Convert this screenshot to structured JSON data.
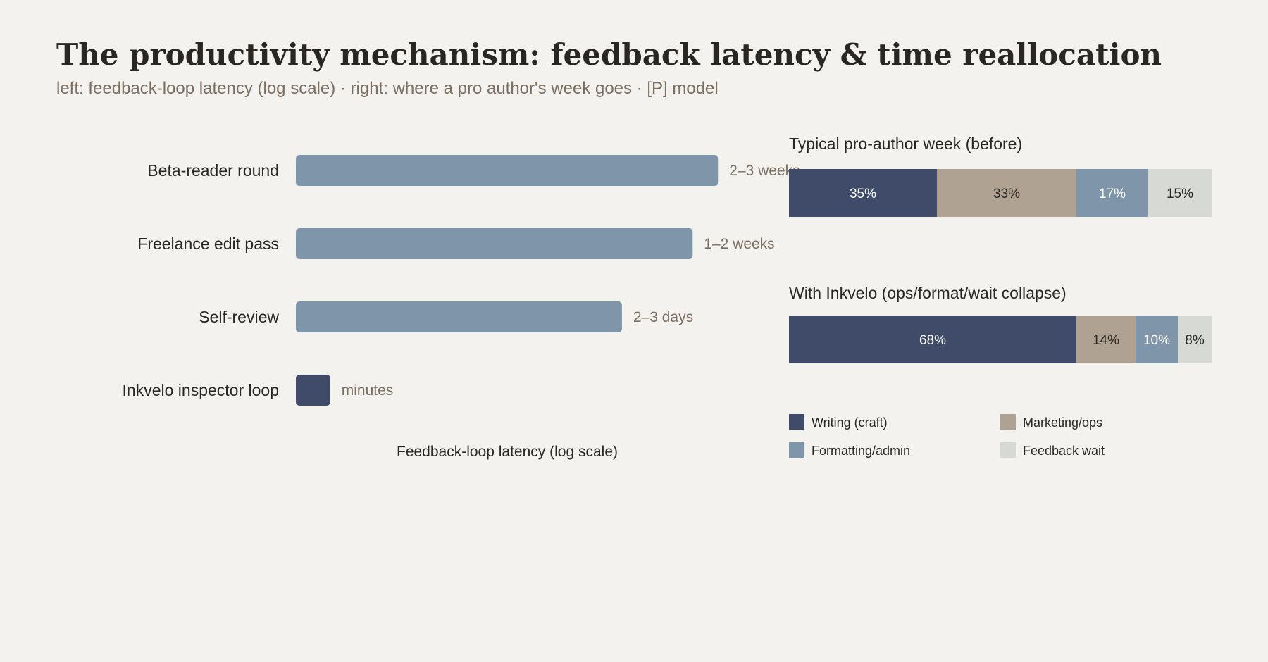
{
  "title": "The productivity mechanism: feedback latency & time reallocation",
  "subtitle": "left: feedback-loop latency (log scale) · right: where a pro author's week goes · [P] model",
  "colors": {
    "background": "#f4f2ee",
    "writing": "#3f4b68",
    "marketing": "#afa292",
    "formatting": "#7f96aa",
    "feedback": "#d7d9d5",
    "latency_bar": "#7f96aa",
    "latency_highlight": "#3f4b68"
  },
  "chart_data": [
    {
      "type": "bar",
      "orientation": "horizontal",
      "scale": "log",
      "xlabel": "Feedback-loop latency (log scale)",
      "categories": [
        "Beta-reader round",
        "Freelance edit pass",
        "Self-review",
        "Inkvelo inspector loop"
      ],
      "value_labels": [
        "2–3 weeks",
        "1–2 weeks",
        "2–3 days",
        "minutes"
      ],
      "values_minutes": [
        25000,
        15000,
        3600,
        10
      ],
      "highlight": [
        false,
        false,
        false,
        true
      ],
      "xlim_minutes": [
        5,
        60000
      ],
      "grid": false
    },
    {
      "type": "bar",
      "orientation": "horizontal",
      "stacked": true,
      "normalized": true,
      "unit": "%",
      "series_names": [
        "Writing (craft)",
        "Marketing/ops",
        "Formatting/admin",
        "Feedback wait"
      ],
      "panels": [
        {
          "title": "Typical pro-author week (before)",
          "values": [
            35,
            33,
            17,
            15
          ]
        },
        {
          "title": "With Inkvelo (ops/format/wait collapse)",
          "values": [
            68,
            14,
            10,
            8
          ]
        }
      ],
      "legend": "bottom"
    }
  ]
}
